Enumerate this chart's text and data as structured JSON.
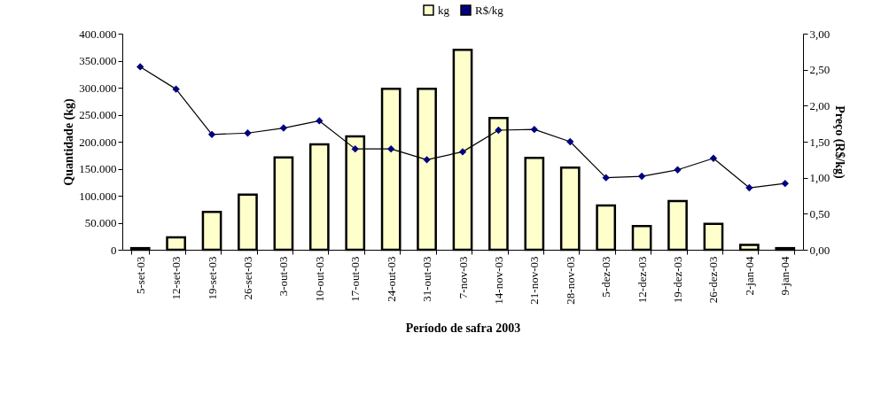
{
  "chart_data": {
    "type": "bar",
    "xlabel": "Período de safra 2003",
    "ylabel": "Quantidade (kg)",
    "y2label": "Preço (R$/kg)",
    "categories": [
      "5-set-03",
      "12-set-03",
      "19-set-03",
      "26-set-03",
      "3-out-03",
      "10-out-03",
      "17-out-03",
      "24-out-03",
      "31-out-03",
      "7-nov-03",
      "14-nov-03",
      "21-nov-03",
      "28-nov-03",
      "5-dez-03",
      "12-dez-03",
      "19-dez-03",
      "26-dez-03",
      "2-jan-04",
      "9-jan-04"
    ],
    "series": [
      {
        "name": "kg",
        "color": "#ffffcc",
        "values": [
          3000,
          23000,
          70000,
          102000,
          171000,
          195000,
          210000,
          298000,
          298000,
          370000,
          244000,
          170000,
          152000,
          82000,
          44000,
          90000,
          48000,
          9000,
          3000
        ]
      },
      {
        "name": "R$/kg",
        "type": "line",
        "axis": "y2",
        "color": "#000080",
        "marker": "diamond",
        "values": [
          2.54,
          2.23,
          1.6,
          1.62,
          1.69,
          1.79,
          1.4,
          1.4,
          1.25,
          1.36,
          1.66,
          1.67,
          1.5,
          1.0,
          1.02,
          1.11,
          1.27,
          0.86,
          0.92
        ]
      }
    ],
    "ylim": [
      0,
      400000
    ],
    "yticks": [
      {
        "value": 0,
        "label": "0"
      },
      {
        "value": 50000,
        "label": "50.000"
      },
      {
        "value": 100000,
        "label": "100.000"
      },
      {
        "value": 150000,
        "label": "150.000"
      },
      {
        "value": 200000,
        "label": "200.000"
      },
      {
        "value": 250000,
        "label": "250.000"
      },
      {
        "value": 300000,
        "label": "300.000"
      },
      {
        "value": 350000,
        "label": "350.000"
      },
      {
        "value": 400000,
        "label": "400.000"
      }
    ],
    "y2lim": [
      0,
      3
    ],
    "y2ticks": [
      {
        "value": 0,
        "label": "0,00"
      },
      {
        "value": 0.5,
        "label": "0,50"
      },
      {
        "value": 1,
        "label": "1,00"
      },
      {
        "value": 1.5,
        "label": "1,50"
      },
      {
        "value": 2,
        "label": "2,00"
      },
      {
        "value": 2.5,
        "label": "2,50"
      },
      {
        "value": 3,
        "label": "3,00"
      }
    ],
    "legend": "top",
    "grid": false
  }
}
